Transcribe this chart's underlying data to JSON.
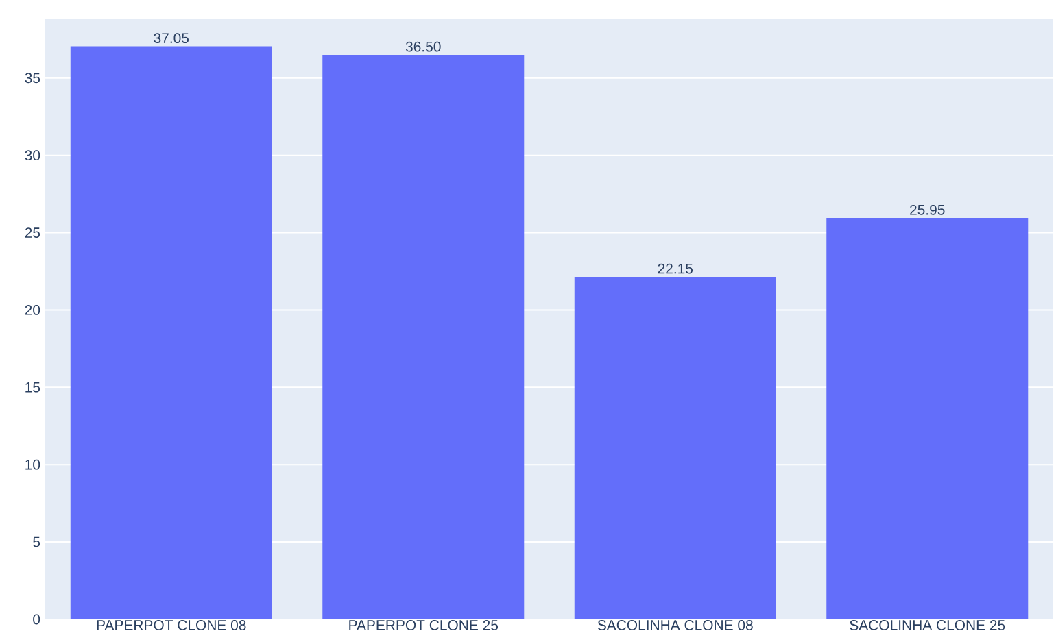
{
  "chart_data": {
    "type": "bar",
    "categories": [
      "PAPERPOT CLONE 08",
      "PAPERPOT CLONE 25",
      "SACOLINHA CLONE 08",
      "SACOLINHA CLONE 25"
    ],
    "values": [
      37.05,
      36.5,
      22.15,
      25.95
    ],
    "value_labels": [
      "37.05",
      "36.50",
      "22.15",
      "25.95"
    ],
    "color": "#636efa",
    "ylim": [
      0,
      38.8
    ],
    "yticks": [
      0,
      5,
      10,
      15,
      20,
      25,
      30,
      35
    ],
    "grid": "y"
  }
}
